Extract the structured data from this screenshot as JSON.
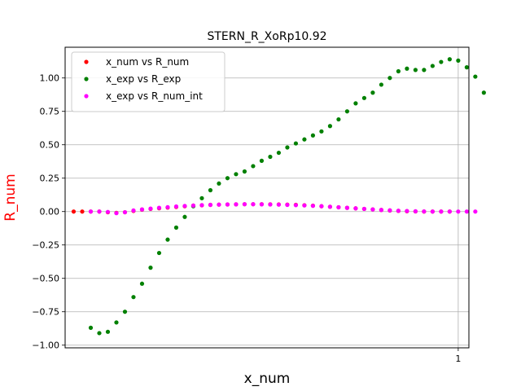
{
  "chart_data": {
    "type": "scatter",
    "title": "STERN_R_XoRp10.92",
    "xlabel": "x_num",
    "ylabel": "R_num",
    "ylabel_color": "#ff0000",
    "xlim": [
      0.08,
      1.025
    ],
    "ylim": [
      -1.02,
      1.23
    ],
    "x_ticks": [
      {
        "value": 1,
        "label": "1"
      }
    ],
    "y_ticks": [
      {
        "value": 1.0,
        "label": "1.00"
      },
      {
        "value": 0.75,
        "label": "0.75"
      },
      {
        "value": 0.5,
        "label": "0.50"
      },
      {
        "value": 0.25,
        "label": "0.25"
      },
      {
        "value": 0.0,
        "label": "0.00"
      },
      {
        "value": -0.25,
        "label": "−0.25"
      },
      {
        "value": -0.5,
        "label": "−0.50"
      },
      {
        "value": -0.75,
        "label": "−0.75"
      },
      {
        "value": -1.0,
        "label": "−1.00"
      }
    ],
    "grid": true,
    "legend_position": "top-left",
    "series": [
      {
        "name": "x_num vs R_num",
        "color": "#ff0000",
        "points": [
          [
            0.1,
            0.0
          ],
          [
            0.12,
            0.0
          ],
          [
            0.14,
            0.0
          ],
          [
            0.16,
            0.0
          ],
          [
            0.18,
            -0.005
          ],
          [
            0.2,
            -0.01
          ],
          [
            0.22,
            -0.005
          ],
          [
            0.24,
            0.005
          ],
          [
            0.26,
            0.015
          ],
          [
            0.28,
            0.02
          ],
          [
            0.3,
            0.025
          ],
          [
            0.32,
            0.03
          ],
          [
            0.34,
            0.035
          ],
          [
            0.36,
            0.04
          ],
          [
            0.38,
            0.045
          ],
          [
            0.4,
            0.047
          ],
          [
            0.42,
            0.05
          ],
          [
            0.44,
            0.052
          ],
          [
            0.46,
            0.053
          ],
          [
            0.48,
            0.054
          ],
          [
            0.5,
            0.055
          ],
          [
            0.52,
            0.055
          ],
          [
            0.54,
            0.055
          ],
          [
            0.56,
            0.054
          ],
          [
            0.58,
            0.053
          ],
          [
            0.6,
            0.052
          ],
          [
            0.62,
            0.05
          ],
          [
            0.64,
            0.047
          ],
          [
            0.66,
            0.044
          ],
          [
            0.68,
            0.04
          ],
          [
            0.7,
            0.036
          ],
          [
            0.72,
            0.032
          ],
          [
            0.74,
            0.028
          ],
          [
            0.76,
            0.024
          ],
          [
            0.78,
            0.02
          ],
          [
            0.8,
            0.016
          ],
          [
            0.82,
            0.012
          ],
          [
            0.84,
            0.008
          ],
          [
            0.86,
            0.005
          ],
          [
            0.88,
            0.003
          ],
          [
            0.9,
            0.001
          ],
          [
            0.92,
            0.0
          ],
          [
            0.94,
            0.0
          ],
          [
            0.96,
            0.0
          ],
          [
            0.98,
            0.0
          ]
        ]
      },
      {
        "name": "x_exp vs R_exp",
        "color": "#008000",
        "points": [
          [
            0.14,
            -0.87
          ],
          [
            0.16,
            -0.91
          ],
          [
            0.18,
            -0.9
          ],
          [
            0.2,
            -0.83
          ],
          [
            0.22,
            -0.75
          ],
          [
            0.24,
            -0.64
          ],
          [
            0.26,
            -0.54
          ],
          [
            0.28,
            -0.42
          ],
          [
            0.3,
            -0.31
          ],
          [
            0.32,
            -0.21
          ],
          [
            0.34,
            -0.12
          ],
          [
            0.36,
            -0.04
          ],
          [
            0.38,
            0.04
          ],
          [
            0.4,
            0.1
          ],
          [
            0.42,
            0.16
          ],
          [
            0.44,
            0.21
          ],
          [
            0.46,
            0.25
          ],
          [
            0.48,
            0.28
          ],
          [
            0.5,
            0.3
          ],
          [
            0.52,
            0.34
          ],
          [
            0.54,
            0.38
          ],
          [
            0.56,
            0.41
          ],
          [
            0.58,
            0.44
          ],
          [
            0.6,
            0.48
          ],
          [
            0.62,
            0.51
          ],
          [
            0.64,
            0.54
          ],
          [
            0.66,
            0.57
          ],
          [
            0.68,
            0.6
          ],
          [
            0.7,
            0.64
          ],
          [
            0.72,
            0.69
          ],
          [
            0.74,
            0.75
          ],
          [
            0.76,
            0.81
          ],
          [
            0.78,
            0.85
          ],
          [
            0.8,
            0.89
          ],
          [
            0.82,
            0.95
          ],
          [
            0.84,
            1.0
          ],
          [
            0.86,
            1.05
          ],
          [
            0.88,
            1.07
          ],
          [
            0.9,
            1.06
          ],
          [
            0.92,
            1.06
          ],
          [
            0.94,
            1.09
          ],
          [
            0.96,
            1.12
          ],
          [
            0.98,
            1.14
          ],
          [
            1.0,
            1.13
          ],
          [
            1.02,
            1.08
          ],
          [
            1.04,
            1.01
          ],
          [
            1.06,
            0.89
          ]
        ]
      },
      {
        "name": "x_exp vs R_num_int",
        "color": "#ff00ff",
        "points": [
          [
            0.14,
            0.0
          ],
          [
            0.16,
            0.0
          ],
          [
            0.18,
            -0.003
          ],
          [
            0.2,
            -0.012
          ],
          [
            0.22,
            -0.005
          ],
          [
            0.24,
            0.008
          ],
          [
            0.26,
            0.016
          ],
          [
            0.28,
            0.022
          ],
          [
            0.3,
            0.028
          ],
          [
            0.32,
            0.033
          ],
          [
            0.34,
            0.038
          ],
          [
            0.36,
            0.042
          ],
          [
            0.38,
            0.045
          ],
          [
            0.4,
            0.048
          ],
          [
            0.42,
            0.05
          ],
          [
            0.44,
            0.052
          ],
          [
            0.46,
            0.053
          ],
          [
            0.48,
            0.054
          ],
          [
            0.5,
            0.055
          ],
          [
            0.52,
            0.055
          ],
          [
            0.54,
            0.054
          ],
          [
            0.56,
            0.053
          ],
          [
            0.58,
            0.052
          ],
          [
            0.6,
            0.05
          ],
          [
            0.62,
            0.048
          ],
          [
            0.64,
            0.046
          ],
          [
            0.66,
            0.043
          ],
          [
            0.68,
            0.04
          ],
          [
            0.7,
            0.036
          ],
          [
            0.72,
            0.032
          ],
          [
            0.74,
            0.028
          ],
          [
            0.76,
            0.024
          ],
          [
            0.78,
            0.02
          ],
          [
            0.8,
            0.016
          ],
          [
            0.82,
            0.012
          ],
          [
            0.84,
            0.009
          ],
          [
            0.86,
            0.006
          ],
          [
            0.88,
            0.004
          ],
          [
            0.9,
            0.002
          ],
          [
            0.92,
            0.001
          ],
          [
            0.94,
            0.0
          ],
          [
            0.96,
            0.0
          ],
          [
            0.98,
            0.0
          ],
          [
            1.0,
            0.0
          ],
          [
            1.02,
            0.0
          ],
          [
            1.04,
            0.0
          ]
        ]
      }
    ]
  }
}
